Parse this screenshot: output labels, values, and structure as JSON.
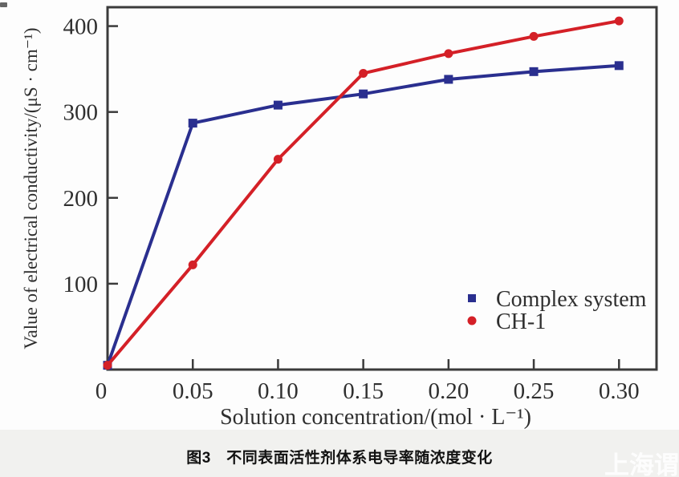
{
  "chart_data": {
    "type": "line",
    "title": "",
    "xlabel": "Solution concentration/(mol · L⁻¹)",
    "ylabel": "Value of electrical conductivity/(μS · cm⁻¹)",
    "x": [
      0,
      0.05,
      0.1,
      0.15,
      0.2,
      0.25,
      0.3
    ],
    "series": [
      {
        "name": "Complex system",
        "color": "#2a2f8f",
        "marker": "square",
        "values": [
          5,
          287,
          308,
          321,
          338,
          347,
          354
        ]
      },
      {
        "name": "CH-1",
        "color": "#d42027",
        "marker": "circle",
        "values": [
          5,
          122,
          245,
          345,
          368,
          388,
          406
        ]
      }
    ],
    "xlim": [
      0,
      0.322
    ],
    "ylim": [
      0,
      422
    ],
    "x_ticks": {
      "values": [
        0,
        0.05,
        0.1,
        0.15,
        0.2,
        0.25,
        0.3
      ],
      "labels": [
        "0",
        "0.05",
        "0.10",
        "0.15",
        "0.20",
        "0.25",
        "0.30"
      ]
    },
    "y_ticks": {
      "values": [
        100,
        200,
        300,
        400
      ],
      "labels": [
        "100",
        "200",
        "300",
        "400"
      ]
    },
    "grid": false,
    "legend_position": "inside-right-middle",
    "frame_color": "#3b3b3b",
    "text_color": "#2f2f2f"
  },
  "caption": {
    "text": "图3　不同表面活性剂体系电导率随浓度变化"
  },
  "watermark": {
    "text": "上海谓"
  }
}
